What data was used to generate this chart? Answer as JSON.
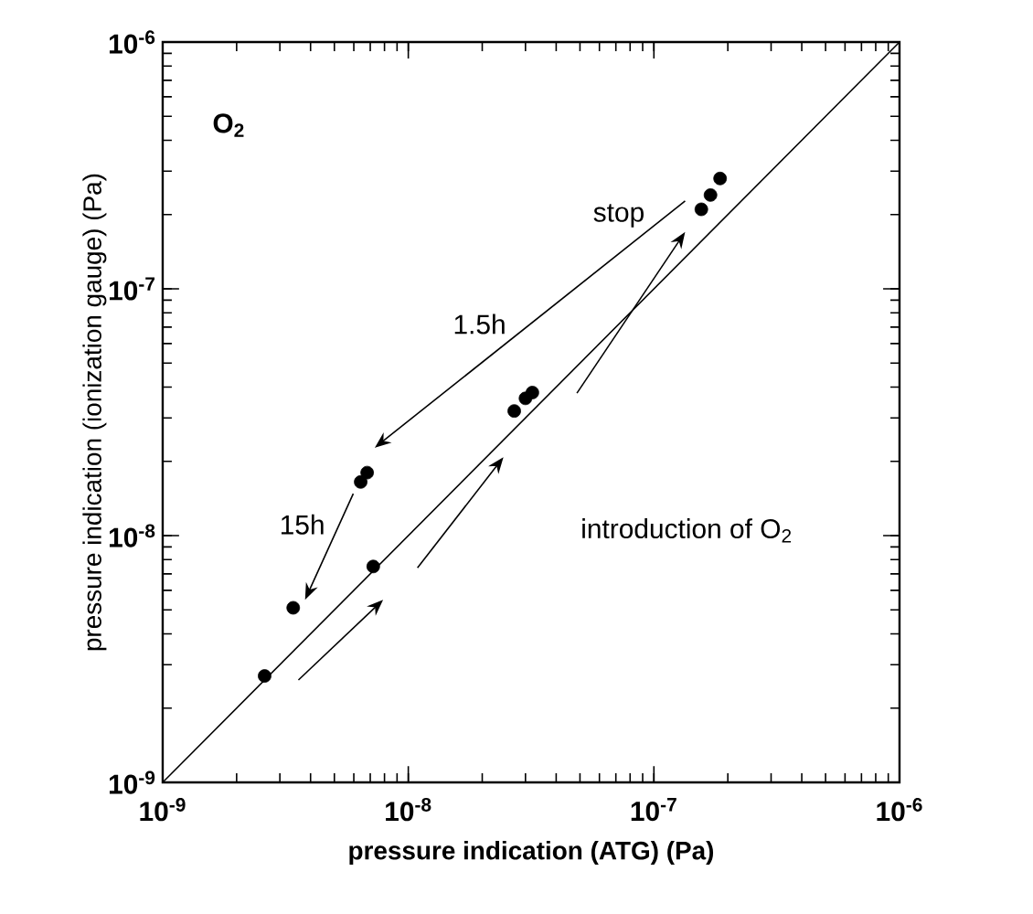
{
  "chart_data": {
    "type": "scatter",
    "xlabel": "pressure indication (ATG) (Pa)",
    "ylabel": "pressure indication (ionization gauge) (Pa)",
    "log": "xy",
    "xlim": [
      1e-09,
      1e-06
    ],
    "ylim": [
      1e-09,
      1e-06
    ],
    "xticks": [
      {
        "value": 1e-09,
        "label": "10$^{-9}$"
      },
      {
        "value": 1e-08,
        "label": "10$^{-8}$"
      },
      {
        "value": 1e-07,
        "label": "10$^{-7}$"
      },
      {
        "value": 1e-06,
        "label": "10$^{-6}$"
      }
    ],
    "yticks": [
      {
        "value": 1e-09,
        "label": "10$^{-9}$"
      },
      {
        "value": 1e-08,
        "label": "10$^{-8}$"
      },
      {
        "value": 1e-07,
        "label": "10$^{-7}$"
      },
      {
        "value": 1e-06,
        "label": "10$^{-6}$"
      }
    ],
    "annotations": [
      "O$_{2}$",
      "stop",
      "1.5h",
      "15h",
      "introduction of O$_{2}$"
    ],
    "series": [
      {
        "type": "scatter",
        "color": "#000000",
        "x": [
          2.6e-09,
          7.2e-09,
          3.4e-09,
          6.4e-09,
          6.8e-09,
          2.7e-08,
          3e-08,
          3.2e-08,
          1.56e-07,
          1.7e-07,
          1.86e-07
        ],
        "values": [
          2.7e-09,
          7.5e-09,
          5.1e-09,
          1.65e-08,
          1.8e-08,
          3.2e-08,
          3.6e-08,
          3.8e-08,
          2.1e-07,
          2.4e-07,
          2.8e-07
        ]
      },
      {
        "type": "line",
        "color": "#000000",
        "x": [
          1e-09,
          1e-06
        ],
        "values": [
          1e-09,
          1e-06
        ]
      }
    ]
  }
}
